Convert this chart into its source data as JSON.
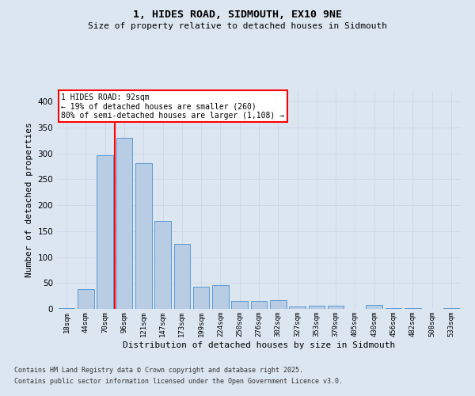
{
  "title": "1, HIDES ROAD, SIDMOUTH, EX10 9NE",
  "subtitle": "Size of property relative to detached houses in Sidmouth",
  "xlabel": "Distribution of detached houses by size in Sidmouth",
  "ylabel": "Number of detached properties",
  "footnote1": "Contains HM Land Registry data © Crown copyright and database right 2025.",
  "footnote2": "Contains public sector information licensed under the Open Government Licence v3.0.",
  "bar_labels": [
    "18sqm",
    "44sqm",
    "70sqm",
    "96sqm",
    "121sqm",
    "147sqm",
    "173sqm",
    "199sqm",
    "224sqm",
    "250sqm",
    "276sqm",
    "302sqm",
    "327sqm",
    "353sqm",
    "379sqm",
    "405sqm",
    "430sqm",
    "456sqm",
    "482sqm",
    "508sqm",
    "533sqm"
  ],
  "bar_values": [
    2,
    38,
    296,
    330,
    281,
    170,
    125,
    43,
    46,
    15,
    16,
    17,
    5,
    6,
    6,
    0,
    7,
    2,
    1,
    0,
    1
  ],
  "bar_color": "#b8cce4",
  "bar_edge_color": "#5b9bd5",
  "grid_color": "#d0d8e8",
  "background_color": "#dce6f1",
  "vline_color": "#ff0000",
  "vline_x_index": 2.5,
  "annotation_text": "1 HIDES ROAD: 92sqm\n← 19% of detached houses are smaller (260)\n80% of semi-detached houses are larger (1,108) →",
  "annotation_box_color": "#ff0000",
  "annotation_fill": "#ffffff",
  "ylim": [
    0,
    420
  ],
  "yticks": [
    0,
    50,
    100,
    150,
    200,
    250,
    300,
    350,
    400
  ]
}
